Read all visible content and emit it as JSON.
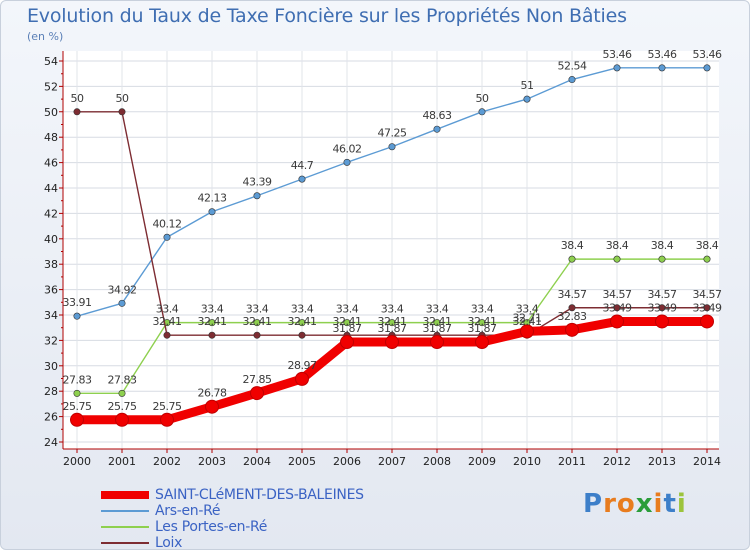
{
  "header": {
    "title": "Evolution du Taux de Taxe Foncière sur les Propriétés Non Bâties",
    "unit": "(en %)"
  },
  "brand": {
    "name": "Proxiti",
    "letters": [
      "P",
      "r",
      "o",
      "x",
      "i",
      "t",
      "i"
    ],
    "letter_colors": [
      "#3d7fc9",
      "#e87c1e",
      "#e87c1e",
      "#2a9d3a",
      "#e87c1e",
      "#3d7fc9",
      "#9cc43c"
    ]
  },
  "chart_data": {
    "type": "line",
    "title": "Evolution du Taux de Taxe Foncière sur les Propriétés Non Bâties",
    "ylabel": "(en %)",
    "xlabel": "",
    "ylim": [
      24,
      54
    ],
    "yticks": [
      "24",
      "26",
      "28",
      "30",
      "32",
      "34",
      "36",
      "38",
      "40",
      "42",
      "44",
      "46",
      "48",
      "50",
      "52",
      "54"
    ],
    "categories": [
      "2000",
      "2001",
      "2002",
      "2003",
      "2004",
      "2005",
      "2006",
      "2007",
      "2008",
      "2009",
      "2010",
      "2011",
      "2012",
      "2013",
      "2014"
    ],
    "grid": true,
    "legend_position": "bottom-left",
    "series": [
      {
        "name": "Ars-en-Ré",
        "color": "#5c9bd4",
        "values": [
          33.91,
          34.92,
          40.12,
          42.13,
          43.39,
          44.7,
          46.02,
          47.25,
          48.63,
          50,
          51,
          52.54,
          53.46,
          53.46,
          53.46
        ],
        "labels": [
          "33.91",
          "34.92",
          "40.12",
          "42.13",
          "43.39",
          "44.7",
          "46.02",
          "47.25",
          "48.63",
          "50",
          "51",
          "52.54",
          "53.46",
          "53.46",
          "53.46"
        ]
      },
      {
        "name": "Les Portes-en-Ré",
        "color": "#8ed04f",
        "values": [
          27.83,
          27.83,
          33.4,
          33.4,
          33.4,
          33.4,
          33.4,
          33.4,
          33.4,
          33.4,
          33.4,
          38.4,
          38.4,
          38.4,
          38.4
        ],
        "labels": [
          "27.83",
          "27.83",
          "33.4",
          "33.4",
          "33.4",
          "33.4",
          "33.4",
          "33.4",
          "33.4",
          "33.4",
          "33.4",
          "38.4",
          "38.4",
          "38.4",
          "38.4"
        ]
      },
      {
        "name": "Loix",
        "color": "#7d2c32",
        "values": [
          50,
          50,
          32.41,
          32.41,
          32.41,
          32.41,
          32.41,
          32.41,
          32.41,
          32.41,
          32.41,
          34.57,
          34.57,
          34.57,
          34.57
        ],
        "labels": [
          "50",
          "50",
          "32.41",
          "32.41",
          "32.41",
          "32.41",
          "32.41",
          "32.41",
          "32.41",
          "32.41",
          "32.41",
          "34.57",
          "34.57",
          "34.57",
          "34.57"
        ]
      },
      {
        "name": "SAINT-CLéMENT-DES-BALEINES",
        "color": "#f00000",
        "values": [
          25.75,
          25.75,
          25.75,
          26.78,
          27.85,
          28.97,
          31.87,
          31.87,
          31.87,
          31.87,
          32.71,
          32.83,
          33.49,
          33.49,
          33.49
        ],
        "labels": [
          "25.75",
          "25.75",
          "25.75",
          "26.78",
          "27.85",
          "28.97",
          "31.87",
          "31.87",
          "31.87",
          "31.87",
          "32.71",
          "32.83",
          "33.49",
          "33.49",
          "33.49"
        ]
      }
    ]
  }
}
